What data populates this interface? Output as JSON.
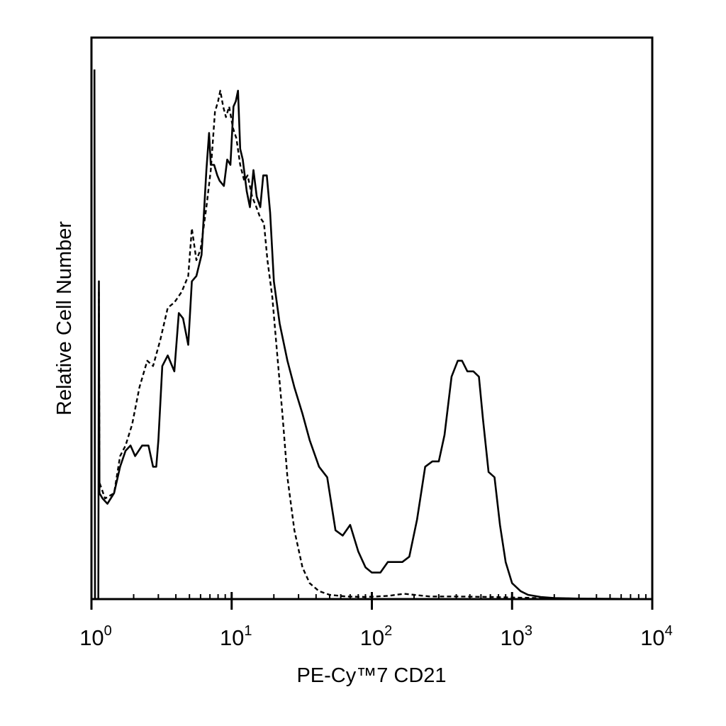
{
  "chart_data": {
    "type": "line",
    "title": "",
    "xlabel": "PE-Cy™7 CD21",
    "ylabel": "Relative Cell Number",
    "x_scale": "log",
    "xlim": [
      1,
      10000
    ],
    "ylim": [
      0,
      100
    ],
    "x_ticks": [
      {
        "base": "10",
        "exp": "0",
        "value": 1
      },
      {
        "base": "10",
        "exp": "1",
        "value": 10
      },
      {
        "base": "10",
        "exp": "2",
        "value": 100
      },
      {
        "base": "10",
        "exp": "3",
        "value": 1000
      },
      {
        "base": "10",
        "exp": "4",
        "value": 10000
      }
    ],
    "legend": "none",
    "grid": false,
    "series": [
      {
        "style": "solid",
        "color": "#000000",
        "points": [
          [
            1.05,
            100
          ],
          [
            1.06,
            0
          ],
          [
            1.12,
            0
          ],
          [
            1.13,
            60
          ],
          [
            1.14,
            20
          ],
          [
            1.2,
            19
          ],
          [
            1.3,
            18
          ],
          [
            1.45,
            20
          ],
          [
            1.6,
            25
          ],
          [
            1.75,
            28
          ],
          [
            1.9,
            29
          ],
          [
            2.05,
            27
          ],
          [
            2.3,
            29
          ],
          [
            2.55,
            29
          ],
          [
            2.75,
            25
          ],
          [
            2.9,
            25
          ],
          [
            3.0,
            30
          ],
          [
            3.2,
            44
          ],
          [
            3.5,
            46
          ],
          [
            3.9,
            43
          ],
          [
            4.2,
            54
          ],
          [
            4.5,
            53
          ],
          [
            4.9,
            48
          ],
          [
            5.2,
            60
          ],
          [
            5.6,
            61
          ],
          [
            6.1,
            65
          ],
          [
            6.6,
            81
          ],
          [
            6.9,
            88
          ],
          [
            7.1,
            82
          ],
          [
            7.5,
            82
          ],
          [
            7.9,
            80
          ],
          [
            8.2,
            79
          ],
          [
            8.8,
            78
          ],
          [
            9.3,
            83
          ],
          [
            9.8,
            82
          ],
          [
            10.3,
            93
          ],
          [
            10.7,
            94
          ],
          [
            11.1,
            96
          ],
          [
            11.5,
            85
          ],
          [
            12.0,
            83
          ],
          [
            12.8,
            77
          ],
          [
            13.5,
            74
          ],
          [
            14.3,
            81
          ],
          [
            15.1,
            76
          ],
          [
            16.0,
            74
          ],
          [
            16.8,
            80
          ],
          [
            17.8,
            80
          ],
          [
            18.8,
            73
          ],
          [
            20.0,
            60
          ],
          [
            22.0,
            52
          ],
          [
            25.0,
            45
          ],
          [
            28.0,
            40
          ],
          [
            32.0,
            35
          ],
          [
            36.0,
            30
          ],
          [
            42.0,
            25
          ],
          [
            48.0,
            23
          ],
          [
            55.0,
            13
          ],
          [
            62.0,
            12
          ],
          [
            70.0,
            14
          ],
          [
            80.0,
            9
          ],
          [
            90.0,
            6
          ],
          [
            100.0,
            5
          ],
          [
            115.0,
            5
          ],
          [
            130.0,
            7
          ],
          [
            145.0,
            7
          ],
          [
            165.0,
            7
          ],
          [
            185.0,
            8
          ],
          [
            210.0,
            15
          ],
          [
            240.0,
            25
          ],
          [
            270.0,
            26
          ],
          [
            300.0,
            26
          ],
          [
            330.0,
            31
          ],
          [
            370.0,
            42
          ],
          [
            410.0,
            45
          ],
          [
            440.0,
            45
          ],
          [
            480.0,
            43
          ],
          [
            530.0,
            43
          ],
          [
            580.0,
            42
          ],
          [
            620.0,
            34
          ],
          [
            680.0,
            24
          ],
          [
            750.0,
            23
          ],
          [
            820.0,
            14
          ],
          [
            900.0,
            7
          ],
          [
            1000.0,
            3
          ],
          [
            1150.0,
            1.5
          ],
          [
            1300.0,
            0.8
          ],
          [
            1600.0,
            0.4
          ],
          [
            2000.0,
            0.2
          ],
          [
            3000.0,
            0.1
          ],
          [
            5000.0,
            0.05
          ],
          [
            10000.0,
            0
          ]
        ]
      },
      {
        "style": "dashed",
        "color": "#000000",
        "points": [
          [
            1.13,
            58
          ],
          [
            1.14,
            22
          ],
          [
            1.25,
            19
          ],
          [
            1.45,
            20
          ],
          [
            1.6,
            27
          ],
          [
            1.75,
            29
          ],
          [
            1.95,
            33
          ],
          [
            2.2,
            40
          ],
          [
            2.5,
            45
          ],
          [
            2.75,
            44
          ],
          [
            3.1,
            49
          ],
          [
            3.5,
            55
          ],
          [
            3.9,
            56
          ],
          [
            4.4,
            58
          ],
          [
            4.9,
            61
          ],
          [
            5.2,
            70
          ],
          [
            5.6,
            64
          ],
          [
            6.0,
            66
          ],
          [
            6.6,
            74
          ],
          [
            7.1,
            81
          ],
          [
            7.6,
            92
          ],
          [
            8.0,
            94
          ],
          [
            8.3,
            96
          ],
          [
            8.7,
            93
          ],
          [
            9.1,
            91
          ],
          [
            9.6,
            93
          ],
          [
            10.2,
            89
          ],
          [
            10.8,
            87
          ],
          [
            11.5,
            82
          ],
          [
            12.3,
            79
          ],
          [
            13.0,
            80
          ],
          [
            14.0,
            76
          ],
          [
            15.0,
            74
          ],
          [
            16.0,
            72
          ],
          [
            17.0,
            71
          ],
          [
            18.0,
            64
          ],
          [
            19.5,
            57
          ],
          [
            21.0,
            47
          ],
          [
            23.0,
            35
          ],
          [
            25.0,
            23
          ],
          [
            28.0,
            13
          ],
          [
            32.0,
            6
          ],
          [
            36.0,
            3
          ],
          [
            42.0,
            1.5
          ],
          [
            50.0,
            0.8
          ],
          [
            65.0,
            0.5
          ],
          [
            90.0,
            0.4
          ],
          [
            130.0,
            0.6
          ],
          [
            170.0,
            1.0
          ],
          [
            200.0,
            0.8
          ],
          [
            260.0,
            0.5
          ],
          [
            400.0,
            0.5
          ],
          [
            700.0,
            0.4
          ],
          [
            1500.0,
            0.2
          ],
          [
            4000.0,
            0.05
          ],
          [
            10000.0,
            0
          ]
        ]
      }
    ]
  }
}
